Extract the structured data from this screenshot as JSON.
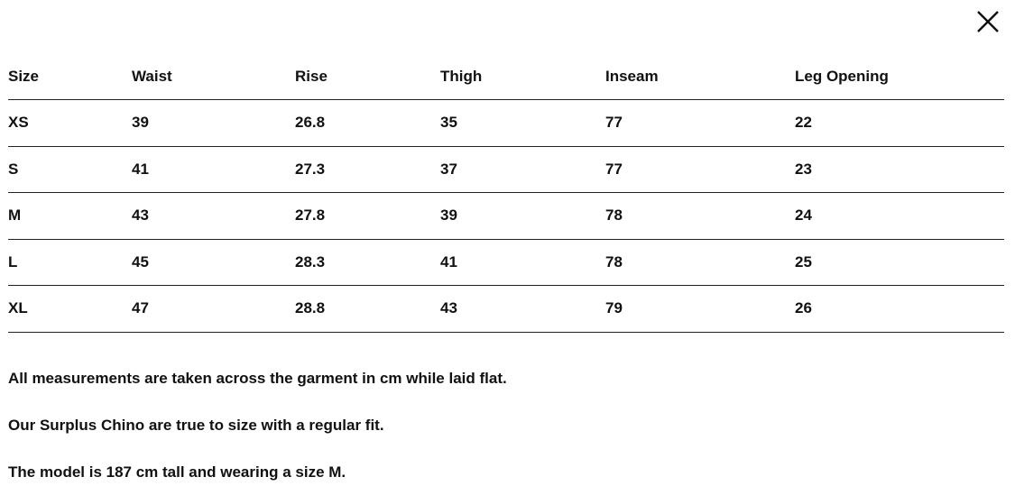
{
  "close_icon": "close-icon",
  "table": {
    "headers": [
      "Size",
      "Waist",
      "Rise",
      "Thigh",
      "Inseam",
      "Leg Opening"
    ],
    "rows": [
      [
        "XS",
        "39",
        "26.8",
        "35",
        "77",
        "22"
      ],
      [
        "S",
        "41",
        "27.3",
        "37",
        "77",
        "23"
      ],
      [
        "M",
        "43",
        "27.8",
        "39",
        "78",
        "24"
      ],
      [
        "L",
        "45",
        "28.3",
        "41",
        "78",
        "25"
      ],
      [
        "XL",
        "47",
        "28.8",
        "43",
        "79",
        "26"
      ]
    ]
  },
  "notes": [
    "All measurements are taken across the garment in cm while laid flat.",
    "Our Surplus Chino are true to size with a regular fit.",
    "The model is 187 cm tall and wearing a size M."
  ]
}
